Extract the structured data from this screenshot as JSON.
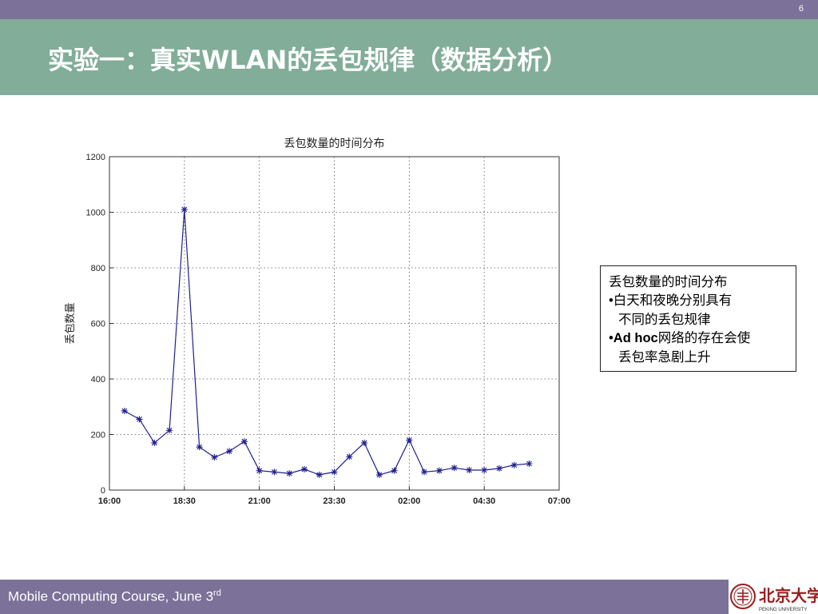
{
  "page": {
    "number": "6"
  },
  "slide": {
    "title": "实验一：真实WLAN的丢包规律（数据分析）"
  },
  "note": {
    "title": "丢包数量的时间分布",
    "bullet": "•",
    "line1": "白天和夜晚分别具有",
    "line1b": "不同的丢包规律",
    "line2_bold": "Ad hoc",
    "line2": "网络的存在会使",
    "line2b": "丢包率急剧上升"
  },
  "footer": {
    "text": "Mobile Computing Course, June 3",
    "sup": "rd"
  },
  "logo": {
    "text": "北京大学",
    "sub": "PEKING UNIVERSITY",
    "color": "#9b1c1c"
  },
  "chart_data": {
    "type": "line",
    "title": "丢包数量的时间分布",
    "xlabel": "",
    "ylabel": "丢包数量",
    "x_tick_labels": [
      "16:00",
      "18:30",
      "21:00",
      "23:30",
      "02:00",
      "04:30",
      "07:00"
    ],
    "x_tick_values": [
      0,
      150,
      300,
      450,
      600,
      750,
      900
    ],
    "xlim": [
      0,
      900
    ],
    "y_ticks": [
      0,
      200,
      400,
      600,
      800,
      1000,
      1200
    ],
    "ylim": [
      0,
      1200
    ],
    "grid": true,
    "series": [
      {
        "marker": "*",
        "color": "#1f1f8f",
        "x": [
          30,
          60,
          90,
          120,
          150,
          180,
          210,
          240,
          270,
          300,
          330,
          360,
          390,
          420,
          450,
          480,
          510,
          540,
          570,
          600,
          630,
          660,
          690,
          720,
          750,
          780,
          810,
          840
        ],
        "values": [
          285,
          255,
          170,
          215,
          1010,
          155,
          118,
          140,
          175,
          70,
          65,
          60,
          75,
          55,
          65,
          120,
          170,
          55,
          70,
          180,
          65,
          70,
          80,
          72,
          72,
          78,
          90,
          95
        ]
      }
    ]
  }
}
